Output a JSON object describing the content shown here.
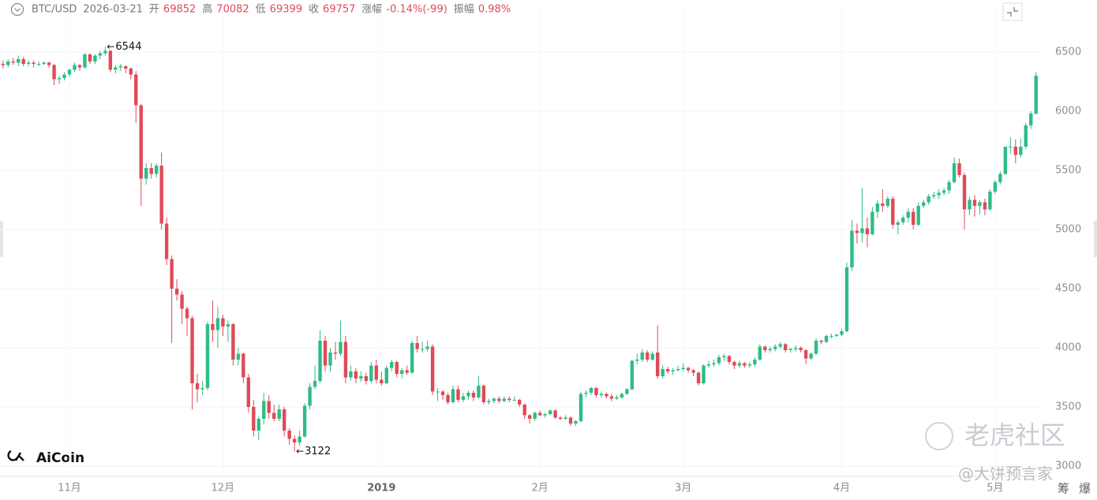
{
  "header": {
    "symbol": "BTC/USD",
    "date": "2026-03-21",
    "items": [
      {
        "label": "开",
        "value": "69852"
      },
      {
        "label": "高",
        "value": "70082"
      },
      {
        "label": "低",
        "value": "69399"
      },
      {
        "label": "收",
        "value": "69757"
      },
      {
        "label": "涨幅",
        "value": "-0.14%(-99)"
      },
      {
        "label": "振幅",
        "value": "0.98%"
      }
    ]
  },
  "watermarks": {
    "brand": "AiCoin",
    "community": "老虎社区",
    "author": "@大饼预言家",
    "side1": "筹",
    "side2": "爆"
  },
  "chart_data": {
    "type": "candlestick",
    "up_color": "#2ebd85",
    "down_color": "#e04a59",
    "grid": true,
    "annotations": [
      "6544",
      "3122"
    ],
    "ylim": [
      2900,
      6900
    ],
    "yticks": [
      3000,
      3500,
      4000,
      4500,
      5000,
      5500,
      6000,
      6500
    ],
    "xticks": [
      {
        "value": 14,
        "label": "11月"
      },
      {
        "value": 44,
        "label": "12月"
      },
      {
        "value": 75,
        "label": "2019"
      },
      {
        "value": 106,
        "label": "2月"
      },
      {
        "value": 134,
        "label": "3月"
      },
      {
        "value": 165,
        "label": "4月"
      },
      {
        "value": 195,
        "label": "5月"
      }
    ],
    "candles": [
      [
        6440,
        6470,
        6370,
        6400
      ],
      [
        6400,
        6430,
        6360,
        6390
      ],
      [
        6390,
        6440,
        6370,
        6420
      ],
      [
        6420,
        6450,
        6390,
        6410
      ],
      [
        6410,
        6470,
        6380,
        6440
      ],
      [
        6440,
        6460,
        6380,
        6400
      ],
      [
        6400,
        6430,
        6380,
        6410
      ],
      [
        6410,
        6430,
        6370,
        6400
      ],
      [
        6400,
        6420,
        6380,
        6400
      ],
      [
        6400,
        6420,
        6390,
        6410
      ],
      [
        6410,
        6420,
        6370,
        6390
      ],
      [
        6390,
        6400,
        6220,
        6270
      ],
      [
        6270,
        6300,
        6230,
        6280
      ],
      [
        6280,
        6330,
        6260,
        6310
      ],
      [
        6310,
        6360,
        6290,
        6350
      ],
      [
        6350,
        6410,
        6330,
        6390
      ],
      [
        6390,
        6400,
        6340,
        6370
      ],
      [
        6370,
        6490,
        6360,
        6480
      ],
      [
        6480,
        6490,
        6400,
        6420
      ],
      [
        6420,
        6480,
        6400,
        6470
      ],
      [
        6470,
        6510,
        6440,
        6490
      ],
      [
        6490,
        6544,
        6470,
        6510
      ],
      [
        6510,
        6520,
        6330,
        6350
      ],
      [
        6350,
        6390,
        6320,
        6370
      ],
      [
        6370,
        6400,
        6340,
        6380
      ],
      [
        6380,
        6390,
        6320,
        6360
      ],
      [
        6360,
        6370,
        6270,
        6310
      ],
      [
        6310,
        6340,
        5900,
        6050
      ],
      [
        6050,
        6060,
        5200,
        5430
      ],
      [
        5430,
        5560,
        5380,
        5520
      ],
      [
        5520,
        5560,
        5430,
        5470
      ],
      [
        5470,
        5560,
        5440,
        5540
      ],
      [
        5540,
        5650,
        5000,
        5050
      ],
      [
        5050,
        5100,
        4700,
        4750
      ],
      [
        4750,
        4780,
        4040,
        4500
      ],
      [
        4500,
        4580,
        4400,
        4450
      ],
      [
        4450,
        4480,
        4200,
        4330
      ],
      [
        4330,
        4350,
        4100,
        4250
      ],
      [
        4250,
        4270,
        3480,
        3700
      ],
      [
        3700,
        3780,
        3540,
        3650
      ],
      [
        3650,
        3720,
        3600,
        3660
      ],
      [
        3660,
        4220,
        3640,
        4200
      ],
      [
        4200,
        4400,
        4050,
        4150
      ],
      [
        4150,
        4350,
        4000,
        4250
      ],
      [
        4250,
        4280,
        4100,
        4180
      ],
      [
        4180,
        4230,
        4050,
        4200
      ],
      [
        4200,
        4210,
        3850,
        3900
      ],
      [
        3900,
        4000,
        3850,
        3950
      ],
      [
        3950,
        3960,
        3700,
        3750
      ],
      [
        3750,
        3780,
        3450,
        3500
      ],
      [
        3500,
        3560,
        3250,
        3300
      ],
      [
        3300,
        3420,
        3220,
        3400
      ],
      [
        3400,
        3620,
        3350,
        3550
      ],
      [
        3550,
        3600,
        3400,
        3450
      ],
      [
        3450,
        3520,
        3380,
        3400
      ],
      [
        3400,
        3520,
        3380,
        3480
      ],
      [
        3480,
        3500,
        3250,
        3300
      ],
      [
        3300,
        3320,
        3180,
        3230
      ],
      [
        3230,
        3260,
        3122,
        3200
      ],
      [
        3200,
        3300,
        3170,
        3250
      ],
      [
        3250,
        3530,
        3240,
        3510
      ],
      [
        3510,
        3700,
        3480,
        3670
      ],
      [
        3670,
        3850,
        3650,
        3720
      ],
      [
        3720,
        4150,
        3700,
        4060
      ],
      [
        4060,
        4100,
        3800,
        3850
      ],
      [
        3850,
        4000,
        3800,
        3960
      ],
      [
        3960,
        4050,
        3900,
        3950
      ],
      [
        3950,
        4230,
        3930,
        4050
      ],
      [
        4050,
        4100,
        3700,
        3750
      ],
      [
        3750,
        3850,
        3720,
        3800
      ],
      [
        3800,
        3830,
        3700,
        3740
      ],
      [
        3740,
        3800,
        3710,
        3760
      ],
      [
        3760,
        3790,
        3690,
        3720
      ],
      [
        3720,
        3880,
        3700,
        3850
      ],
      [
        3850,
        3900,
        3700,
        3730
      ],
      [
        3730,
        3800,
        3680,
        3700
      ],
      [
        3700,
        3850,
        3690,
        3830
      ],
      [
        3830,
        3900,
        3800,
        3880
      ],
      [
        3880,
        3890,
        3750,
        3780
      ],
      [
        3780,
        3830,
        3740,
        3810
      ],
      [
        3810,
        3850,
        3770,
        3790
      ],
      [
        3790,
        4060,
        3780,
        4040
      ],
      [
        4040,
        4100,
        3960,
        3990
      ],
      [
        3990,
        4050,
        3960,
        3990
      ],
      [
        3990,
        4060,
        3970,
        4010
      ],
      [
        4010,
        4030,
        3600,
        3630
      ],
      [
        3630,
        3660,
        3550,
        3630
      ],
      [
        3630,
        3640,
        3560,
        3600
      ],
      [
        3600,
        3620,
        3520,
        3540
      ],
      [
        3540,
        3680,
        3530,
        3650
      ],
      [
        3650,
        3680,
        3540,
        3560
      ],
      [
        3560,
        3620,
        3540,
        3590
      ],
      [
        3590,
        3640,
        3560,
        3620
      ],
      [
        3620,
        3640,
        3550,
        3580
      ],
      [
        3580,
        3760,
        3570,
        3680
      ],
      [
        3680,
        3690,
        3520,
        3540
      ],
      [
        3540,
        3570,
        3520,
        3550
      ],
      [
        3550,
        3580,
        3530,
        3570
      ],
      [
        3570,
        3590,
        3530,
        3550
      ],
      [
        3550,
        3590,
        3540,
        3570
      ],
      [
        3570,
        3590,
        3540,
        3560
      ],
      [
        3560,
        3590,
        3550,
        3560
      ],
      [
        3560,
        3570,
        3500,
        3520
      ],
      [
        3520,
        3530,
        3400,
        3430
      ],
      [
        3430,
        3440,
        3360,
        3400
      ],
      [
        3400,
        3460,
        3380,
        3450
      ],
      [
        3450,
        3470,
        3420,
        3430
      ],
      [
        3430,
        3450,
        3410,
        3440
      ],
      [
        3440,
        3480,
        3430,
        3470
      ],
      [
        3470,
        3480,
        3400,
        3410
      ],
      [
        3410,
        3420,
        3390,
        3400
      ],
      [
        3400,
        3430,
        3390,
        3410
      ],
      [
        3410,
        3420,
        3340,
        3360
      ],
      [
        3360,
        3390,
        3340,
        3380
      ],
      [
        3380,
        3630,
        3370,
        3610
      ],
      [
        3610,
        3640,
        3580,
        3620
      ],
      [
        3620,
        3670,
        3600,
        3660
      ],
      [
        3660,
        3670,
        3580,
        3600
      ],
      [
        3600,
        3630,
        3580,
        3610
      ],
      [
        3610,
        3620,
        3570,
        3590
      ],
      [
        3590,
        3610,
        3550,
        3570
      ],
      [
        3570,
        3600,
        3560,
        3580
      ],
      [
        3580,
        3620,
        3570,
        3610
      ],
      [
        3610,
        3660,
        3600,
        3650
      ],
      [
        3650,
        3900,
        3640,
        3890
      ],
      [
        3890,
        3950,
        3860,
        3900
      ],
      [
        3900,
        3990,
        3880,
        3960
      ],
      [
        3960,
        3980,
        3880,
        3900
      ],
      [
        3900,
        3970,
        3890,
        3950
      ],
      [
        3960,
        4190,
        3740,
        3760
      ],
      [
        3760,
        3850,
        3740,
        3820
      ],
      [
        3820,
        3840,
        3780,
        3800
      ],
      [
        3800,
        3830,
        3770,
        3810
      ],
      [
        3810,
        3850,
        3800,
        3820
      ],
      [
        3820,
        3870,
        3800,
        3830
      ],
      [
        3830,
        3840,
        3790,
        3810
      ],
      [
        3810,
        3820,
        3760,
        3790
      ],
      [
        3790,
        3800,
        3680,
        3700
      ],
      [
        3700,
        3860,
        3690,
        3850
      ],
      [
        3850,
        3890,
        3830,
        3860
      ],
      [
        3860,
        3900,
        3840,
        3870
      ],
      [
        3870,
        3940,
        3850,
        3920
      ],
      [
        3920,
        3950,
        3890,
        3930
      ],
      [
        3930,
        3940,
        3860,
        3880
      ],
      [
        3880,
        3890,
        3820,
        3850
      ],
      [
        3850,
        3890,
        3830,
        3870
      ],
      [
        3870,
        3880,
        3830,
        3850
      ],
      [
        3850,
        3880,
        3830,
        3860
      ],
      [
        3860,
        3920,
        3840,
        3900
      ],
      [
        3900,
        4030,
        3890,
        4010
      ],
      [
        4010,
        4020,
        3960,
        3980
      ],
      [
        3980,
        4010,
        3960,
        3990
      ],
      [
        3990,
        4030,
        3970,
        4010
      ],
      [
        4010,
        4050,
        3990,
        4030
      ],
      [
        4030,
        4040,
        3960,
        3980
      ],
      [
        3980,
        4000,
        3960,
        3990
      ],
      [
        3990,
        4020,
        3970,
        4000
      ],
      [
        4000,
        4010,
        3960,
        3980
      ],
      [
        3980,
        3990,
        3860,
        3910
      ],
      [
        3910,
        3960,
        3900,
        3950
      ],
      [
        3950,
        4080,
        3940,
        4060
      ],
      [
        4060,
        4070,
        4030,
        4050
      ],
      [
        4050,
        4110,
        4040,
        4100
      ],
      [
        4100,
        4120,
        4080,
        4100
      ],
      [
        4100,
        4120,
        4090,
        4110
      ],
      [
        4110,
        4160,
        4100,
        4140
      ],
      [
        4140,
        4720,
        4130,
        4680
      ],
      [
        4680,
        5080,
        4650,
        4990
      ],
      [
        4990,
        5050,
        4880,
        4970
      ],
      [
        4970,
        5350,
        4890,
        5010
      ],
      [
        5010,
        5100,
        4850,
        4960
      ],
      [
        4960,
        5190,
        4950,
        5150
      ],
      [
        5150,
        5250,
        5100,
        5220
      ],
      [
        5220,
        5340,
        5150,
        5200
      ],
      [
        5200,
        5280,
        5180,
        5260
      ],
      [
        5260,
        5280,
        5010,
        5040
      ],
      [
        5040,
        5080,
        4960,
        5060
      ],
      [
        5060,
        5120,
        5040,
        5100
      ],
      [
        5100,
        5180,
        5060,
        5150
      ],
      [
        5150,
        5180,
        5000,
        5040
      ],
      [
        5040,
        5230,
        5030,
        5200
      ],
      [
        5200,
        5250,
        5180,
        5230
      ],
      [
        5230,
        5300,
        5210,
        5280
      ],
      [
        5280,
        5320,
        5260,
        5290
      ],
      [
        5290,
        5340,
        5260,
        5310
      ],
      [
        5310,
        5350,
        5290,
        5330
      ],
      [
        5330,
        5420,
        5300,
        5400
      ],
      [
        5400,
        5610,
        5390,
        5560
      ],
      [
        5560,
        5600,
        5440,
        5460
      ],
      [
        5460,
        5480,
        5000,
        5170
      ],
      [
        5170,
        5280,
        5120,
        5250
      ],
      [
        5250,
        5290,
        5110,
        5200
      ],
      [
        5200,
        5250,
        5130,
        5230
      ],
      [
        5230,
        5260,
        5120,
        5170
      ],
      [
        5170,
        5340,
        5160,
        5320
      ],
      [
        5320,
        5420,
        5300,
        5400
      ],
      [
        5400,
        5490,
        5380,
        5470
      ],
      [
        5470,
        5700,
        5460,
        5700
      ],
      [
        5700,
        5780,
        5640,
        5700
      ],
      [
        5700,
        5760,
        5560,
        5630
      ],
      [
        5630,
        5770,
        5610,
        5700
      ],
      [
        5700,
        5900,
        5680,
        5880
      ],
      [
        5880,
        6000,
        5850,
        5980
      ],
      [
        5980,
        6330,
        5970,
        6300
      ]
    ]
  }
}
